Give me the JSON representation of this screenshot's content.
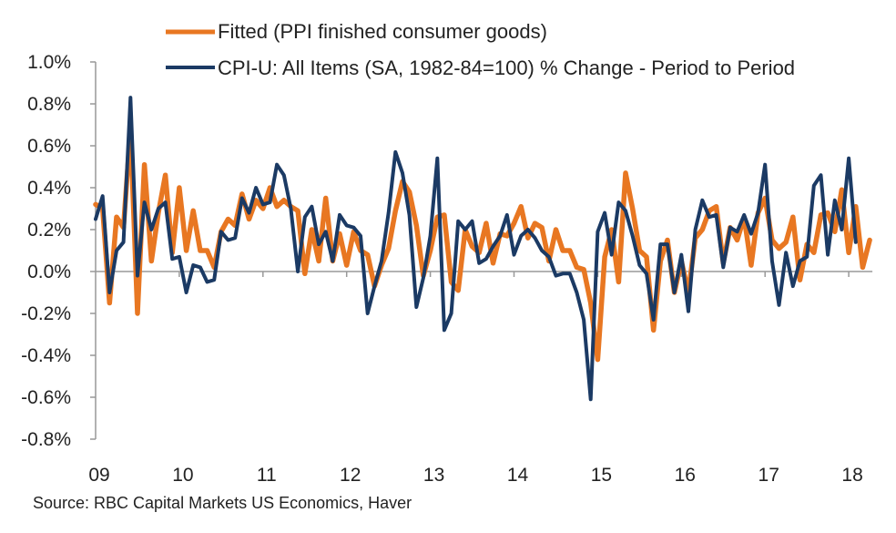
{
  "chart_data": {
    "type": "line",
    "title": "",
    "xlabel": "",
    "ylabel": "",
    "ylim": [
      -0.8,
      1.0
    ],
    "ytick_step": 0.2,
    "yticks": [
      "1.0%",
      "0.8%",
      "0.6%",
      "0.4%",
      "0.2%",
      "0.0%",
      "-0.2%",
      "-0.4%",
      "-0.6%",
      "-0.8%"
    ],
    "ytick_values": [
      1.0,
      0.8,
      0.6,
      0.4,
      0.2,
      0.0,
      -0.2,
      -0.4,
      -0.6,
      -0.8
    ],
    "xticks": [
      "09",
      "10",
      "11",
      "12",
      "13",
      "14",
      "15",
      "16",
      "17",
      "18"
    ],
    "x_start": "2009-01",
    "frequency": "monthly",
    "grid": false,
    "legend_position": "top",
    "colors": {
      "fitted": "#E87722",
      "cpi": "#1B3A64",
      "axis": "#999999"
    },
    "series": [
      {
        "name": "Fitted (PPI finished consumer goods)",
        "key": "fitted",
        "values": [
          0.32,
          0.3,
          -0.15,
          0.26,
          0.21,
          0.68,
          -0.2,
          0.51,
          0.05,
          0.28,
          0.46,
          0.09,
          0.4,
          0.1,
          0.29,
          0.1,
          0.1,
          0.02,
          0.19,
          0.25,
          0.22,
          0.37,
          0.25,
          0.34,
          0.3,
          0.4,
          0.31,
          0.34,
          0.31,
          0.29,
          -0.01,
          0.2,
          0.05,
          0.35,
          0.05,
          0.18,
          0.03,
          0.19,
          0.1,
          0.08,
          -0.07,
          0.03,
          0.11,
          0.29,
          0.43,
          0.38,
          0.22,
          -0.02,
          0.1,
          0.26,
          0.27,
          -0.05,
          -0.09,
          0.2,
          0.12,
          0.09,
          0.23,
          0.04,
          0.18,
          0.17,
          0.23,
          0.31,
          0.16,
          0.23,
          0.21,
          0.05,
          0.2,
          0.1,
          0.1,
          0.02,
          0.01,
          -0.15,
          -0.42,
          0.07,
          0.2,
          -0.05,
          0.47,
          0.3,
          0.1,
          0.07,
          -0.28,
          0.05,
          0.15,
          -0.1,
          0.05,
          -0.1,
          0.16,
          0.2,
          0.29,
          0.31,
          0.04,
          0.21,
          0.15,
          0.26,
          0.03,
          0.28,
          0.35,
          0.15,
          0.11,
          0.14,
          0.26,
          -0.04,
          0.13,
          0.09,
          0.27,
          0.28,
          0.19,
          0.39,
          0.09,
          0.31,
          0.02,
          0.15
        ]
      },
      {
        "name": "CPI-U: All Items (SA, 1982-84=100) % Change - Period to Period",
        "key": "cpi",
        "values": [
          0.25,
          0.36,
          -0.1,
          0.1,
          0.14,
          0.83,
          -0.02,
          0.33,
          0.2,
          0.3,
          0.33,
          0.06,
          0.07,
          -0.1,
          0.03,
          0.02,
          -0.05,
          -0.04,
          0.19,
          0.15,
          0.16,
          0.35,
          0.28,
          0.4,
          0.32,
          0.33,
          0.51,
          0.46,
          0.3,
          0.0,
          0.26,
          0.31,
          0.13,
          0.19,
          0.05,
          0.27,
          0.22,
          0.21,
          0.17,
          -0.2,
          -0.07,
          0.05,
          0.28,
          0.57,
          0.47,
          0.27,
          -0.17,
          -0.03,
          0.17,
          0.54,
          -0.28,
          -0.2,
          0.24,
          0.2,
          0.24,
          0.04,
          0.06,
          0.12,
          0.17,
          0.27,
          0.08,
          0.17,
          0.2,
          0.16,
          0.1,
          0.07,
          -0.02,
          -0.01,
          -0.01,
          -0.1,
          -0.23,
          -0.61,
          0.19,
          0.28,
          0.08,
          0.33,
          0.29,
          0.17,
          0.03,
          -0.01,
          -0.23,
          0.13,
          0.13,
          -0.1,
          0.08,
          -0.19,
          0.2,
          0.34,
          0.26,
          0.27,
          0.02,
          0.21,
          0.19,
          0.27,
          0.18,
          0.28,
          0.51,
          0.05,
          -0.16,
          0.09,
          -0.07,
          0.05,
          0.07,
          0.41,
          0.46,
          0.08,
          0.34,
          0.2,
          0.54,
          0.14
        ]
      }
    ],
    "source": "Source: RBC Capital Markets US Economics, Haver"
  }
}
